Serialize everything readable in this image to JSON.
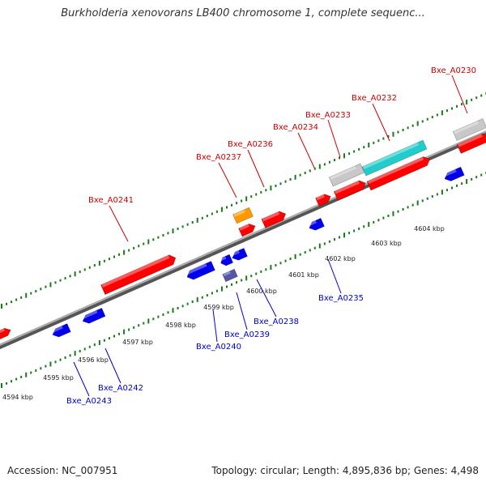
{
  "title": "Burkholderia xenovorans LB400 chromosome 1, complete sequenc...",
  "footer": {
    "accession": "Accession: NC_007951",
    "topology": "Topology: circular; Length: 4,895,836 bp; Genes: 4,498"
  },
  "colors": {
    "forward_gene": "#ff0000",
    "reverse_gene": "#0000ee",
    "forward_label": "#cc0000",
    "reverse_label": "#0000cc",
    "backbone": "#8a8a8a",
    "ticks": "#1a7a1a",
    "pseudo_gene": "#c8c8c8",
    "rna_gene": "#22cccc",
    "other_gene": "#ff9900",
    "reverse_other": "#5555aa"
  },
  "kbp_labels": [
    "4594 kbp",
    "4595 kbp",
    "4596 kbp",
    "4597 kbp",
    "4598 kbp",
    "4599 kbp",
    "4600 kbp",
    "4601 kbp",
    "4602 kbp",
    "4603 kbp",
    "4604 kbp"
  ],
  "forward_labels": [
    "Bxe_A0241",
    "Bxe_A0237",
    "Bxe_A0236",
    "Bxe_A0234",
    "Bxe_A0233",
    "Bxe_A0232",
    "Bxe_A0230"
  ],
  "reverse_labels": [
    "Bxe_A0243",
    "Bxe_A0242",
    "Bxe_A0240",
    "Bxe_A0239",
    "Bxe_A0238",
    "Bxe_A0235"
  ]
}
